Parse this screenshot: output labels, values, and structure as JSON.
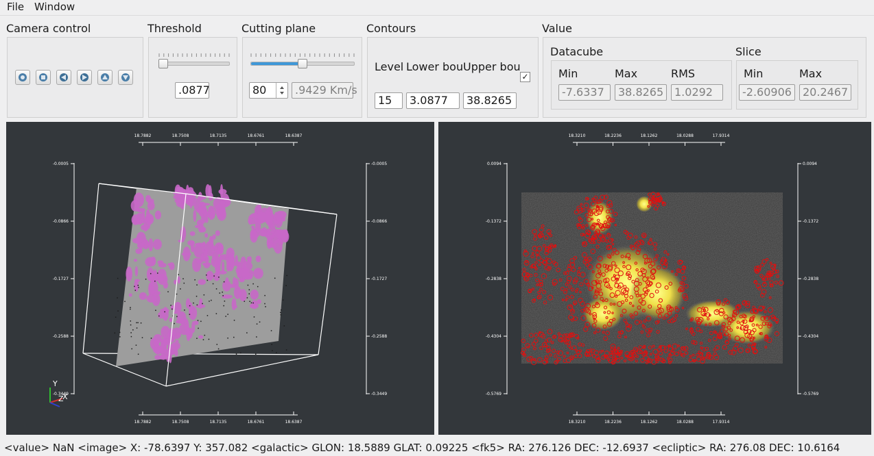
{
  "menu": {
    "file": "File",
    "window": "Window"
  },
  "camera": {
    "title": "Camera control",
    "buttons": [
      "view-front-icon",
      "view-back-icon",
      "view-left-icon",
      "view-right-icon",
      "view-top-icon",
      "view-bottom-icon"
    ]
  },
  "threshold": {
    "title": "Threshold",
    "value": ".0877",
    "slider_fraction": 0.0
  },
  "cutting": {
    "title": "Cutting plane",
    "channel": "80",
    "velocity": ".9429 Km/s",
    "slider_fraction": 0.5
  },
  "contours": {
    "title": "Contours",
    "level_label": "Level",
    "lower_label": "Lower bou",
    "upper_label": "Upper bou",
    "level": "15",
    "lower": "3.0877",
    "upper": "38.8265",
    "checked": true,
    "check_glyph": "✓"
  },
  "value": {
    "title": "Value",
    "datacube": {
      "title": "Datacube",
      "min_label": "Min",
      "max_label": "Max",
      "rms_label": "RMS",
      "min": "-7.6337",
      "max": "38.8265",
      "rms": "1.0292"
    },
    "slice": {
      "title": "Slice",
      "min_label": "Min",
      "max_label": "Max",
      "min": "-2.60906",
      "max": "20.2467"
    }
  },
  "left_view": {
    "top_ticks": [
      "18.7882",
      "18.7508",
      "18.7135",
      "18.6761",
      "18.6387"
    ],
    "bottom_ticks": [
      "18.7882",
      "18.7508",
      "18.7135",
      "18.6761",
      "18.6387"
    ],
    "left_ticks": [
      "-0.0005",
      "-0.0866",
      "-0.1727",
      "-0.2588",
      "-0.3449"
    ],
    "right_ticks": [
      "-0.0005",
      "-0.0866",
      "-0.1727",
      "-0.2588",
      "-0.3449"
    ],
    "axis_y": "Y",
    "axis_z": "Z",
    "axis_x": "X",
    "colors": {
      "surface": "#c868c8",
      "plane": "#9d9d9d",
      "box": "#ffffff"
    }
  },
  "right_view": {
    "top_ticks": [
      "18.3210",
      "18.2236",
      "18.1262",
      "18.0288",
      "17.9314"
    ],
    "bottom_ticks": [
      "18.3210",
      "18.2236",
      "18.1262",
      "18.0288",
      "17.9314"
    ],
    "left_ticks": [
      "0.0094",
      "-0.1372",
      "-0.2838",
      "-0.4304",
      "-0.5769"
    ],
    "right_ticks": [
      "0.0094",
      "-0.1372",
      "-0.2838",
      "-0.4304",
      "-0.5769"
    ],
    "colors": {
      "contour": "#e01010",
      "hot": "#ffff66"
    }
  },
  "status": "<value> NaN <image> X: -78.6397 Y: 357.082 <galactic> GLON: 18.5889 GLAT: 0.09225 <fk5> RA: 276.126 DEC: -12.6937 <ecliptic> RA: 276.08 DEC: 10.6164"
}
